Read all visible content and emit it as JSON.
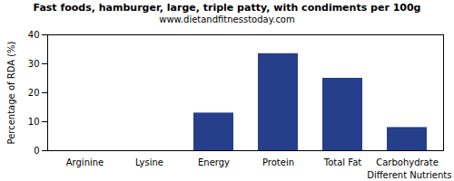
{
  "chart_data": {
    "type": "bar",
    "title": "Fast foods, hamburger, large, triple patty, with condiments per 100g",
    "subtitle": "www.dietandfitnesstoday.com",
    "x_label": "Different Nutrients",
    "y_label": "Percentage of RDA (%)",
    "categories": [
      "Arginine",
      "Lysine",
      "Energy",
      "Protein",
      "Total Fat",
      "Carbohydrate"
    ],
    "values": [
      0,
      0,
      13,
      33.5,
      25,
      8
    ],
    "color": "#263f8a",
    "ylim": [
      0,
      40
    ],
    "yticks": [
      0,
      10,
      20,
      30,
      40
    ],
    "grid": false
  }
}
